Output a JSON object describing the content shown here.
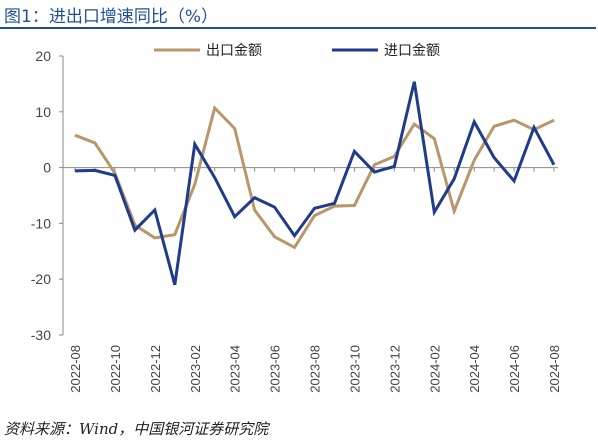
{
  "title": "图1：进出口增速同比（%）",
  "source": "资料来源：Wind，中国银河证券研究院",
  "colors": {
    "export": "#b8976a",
    "import": "#1f3b8c",
    "title": "#1f4e9a"
  },
  "chart_data": {
    "type": "line",
    "title": "",
    "xlabel": "",
    "ylabel": "",
    "ylim": [
      -30,
      20
    ],
    "yticks": [
      20,
      10,
      0,
      -10,
      -20,
      -30
    ],
    "grid": false,
    "legend": "top",
    "x": [
      "2022-08",
      "2022-09",
      "2022-10",
      "2022-11",
      "2022-12",
      "2023-01",
      "2023-02",
      "2023-03",
      "2023-04",
      "2023-05",
      "2023-06",
      "2023-07",
      "2023-08",
      "2023-09",
      "2023-10",
      "2023-11",
      "2023-12",
      "2024-01",
      "2024-02",
      "2024-03",
      "2024-04",
      "2024-05",
      "2024-06",
      "2024-07",
      "2024-08"
    ],
    "xtick_labels": [
      "2022-08",
      "2022-10",
      "2022-12",
      "2023-02",
      "2023-04",
      "2023-06",
      "2023-08",
      "2023-10",
      "2023-12",
      "2024-02",
      "2024-04",
      "2024-06",
      "2024-08"
    ],
    "series": [
      {
        "name": "出口金额",
        "color": "#b8976a",
        "values": [
          5.8,
          4.4,
          -1.0,
          -10.3,
          -12.6,
          -12.0,
          -3.0,
          10.7,
          7.0,
          -7.6,
          -12.4,
          -14.3,
          -8.6,
          -6.9,
          -6.8,
          0.5,
          2.0,
          7.8,
          5.2,
          -7.8,
          1.3,
          7.4,
          8.5,
          6.8,
          8.5
        ]
      },
      {
        "name": "进口金额",
        "color": "#1f3b8c",
        "values": [
          -0.6,
          -0.5,
          -1.4,
          -11.2,
          -7.6,
          -21.0,
          4.2,
          -1.8,
          -8.8,
          -5.4,
          -7.1,
          -12.2,
          -7.3,
          -6.4,
          2.9,
          -0.8,
          0.2,
          15.4,
          -8.0,
          -2.0,
          8.2,
          1.8,
          -2.4,
          7.2,
          0.5
        ]
      }
    ]
  }
}
